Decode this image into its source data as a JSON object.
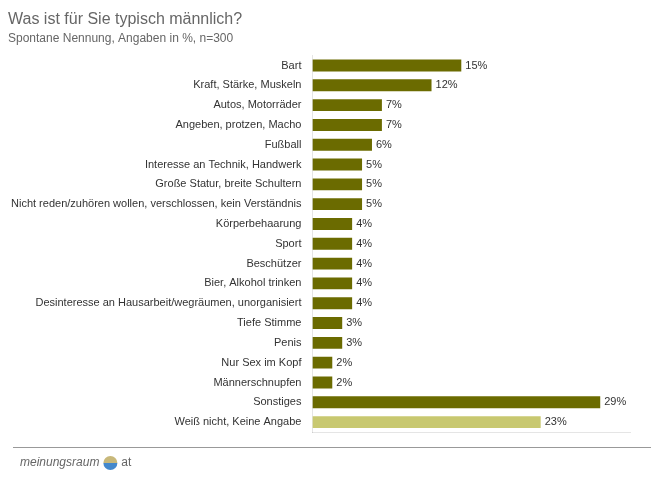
{
  "chart_data": {
    "type": "bar",
    "orientation": "horizontal",
    "title": "Was ist für Sie typisch männlich?",
    "subtitle": "Spontane Nennung, Angaben in %, n=300",
    "categories": [
      "Bart",
      "Kraft, Stärke, Muskeln",
      "Autos, Motorräder",
      "Angeben, protzen, Macho",
      "Fußball",
      "Interesse an Technik, Handwerk",
      "Große Statur, breite Schultern",
      "Nicht reden/zuhören wollen, verschlossen, kein Verständnis",
      "Körperbehaarung",
      "Sport",
      "Beschützer",
      "Bier, Alkohol trinken",
      "Desinteresse an Hausarbeit/wegräumen, unorganisiert",
      "Tiefe Stimme",
      "Penis",
      "Nur Sex im Kopf",
      "Männerschnupfen",
      "Sonstiges",
      "Weiß nicht, Keine Angabe"
    ],
    "values": [
      15,
      12,
      7,
      7,
      6,
      5,
      5,
      5,
      4,
      4,
      4,
      4,
      4,
      3,
      3,
      2,
      2,
      29,
      23
    ],
    "value_labels": [
      "15%",
      "12%",
      "7%",
      "7%",
      "6%",
      "5%",
      "5%",
      "5%",
      "4%",
      "4%",
      "4%",
      "4%",
      "4%",
      "3%",
      "3%",
      "2%",
      "2%",
      "29%",
      "23%"
    ],
    "colors": [
      "#6b6b00",
      "#6b6b00",
      "#6b6b00",
      "#6b6b00",
      "#6b6b00",
      "#6b6b00",
      "#6b6b00",
      "#6b6b00",
      "#6b6b00",
      "#6b6b00",
      "#6b6b00",
      "#6b6b00",
      "#6b6b00",
      "#6b6b00",
      "#6b6b00",
      "#6b6b00",
      "#6b6b00",
      "#6b6b00",
      "#c8c870"
    ],
    "data_labels": true,
    "xlim": [
      0,
      32
    ],
    "grid": false,
    "tick_labels": "y",
    "annotations": [
      "meinungsraum",
      "at"
    ]
  }
}
